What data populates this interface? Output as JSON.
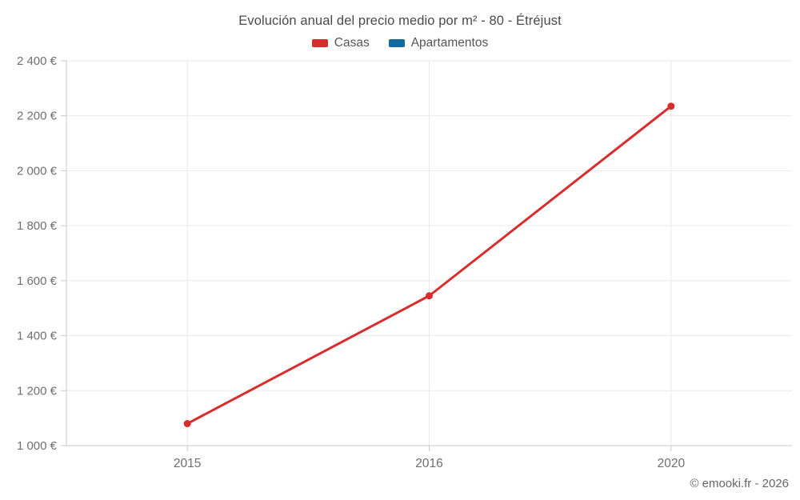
{
  "footer": "© emooki.fr - 2026",
  "chart_data": {
    "type": "line",
    "title": "Evolución anual del precio medio por m² - 80 - Étréjust",
    "categories": [
      "2015",
      "2016",
      "2020"
    ],
    "series": [
      {
        "name": "Casas",
        "color": "#d92c2c",
        "values": [
          1080,
          1545,
          2235
        ]
      },
      {
        "name": "Apartamentos",
        "color": "#136a9e",
        "values": []
      }
    ],
    "xlabel": "",
    "ylabel": "",
    "ylim": [
      1000,
      2400
    ],
    "ytick_step": 200,
    "ytick_labels": [
      "1 000 €",
      "1 200 €",
      "1 400 €",
      "1 600 €",
      "1 800 €",
      "2 000 €",
      "2 200 €",
      "2 400 €"
    ],
    "grid": true,
    "legend_position": "top",
    "colors": {
      "grid": "#e9e9e9",
      "axis": "#c9c9c9",
      "tick_text": "#6f6f6f",
      "title_text": "#4a4a4a"
    }
  }
}
